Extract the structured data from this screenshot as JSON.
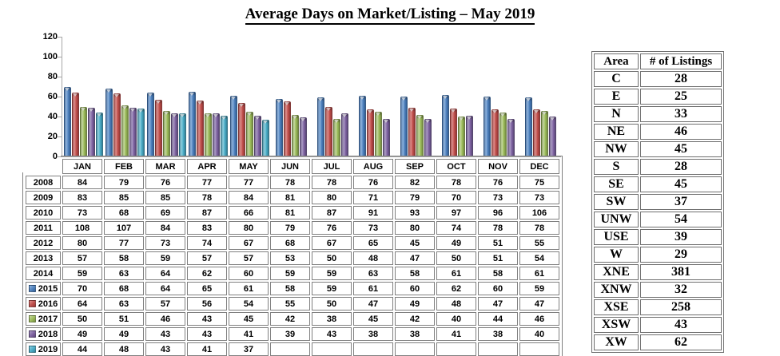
{
  "title": "Average Days on Market/Listing – May 2019",
  "chart_data": {
    "type": "bar",
    "title": "Average Days on Market/Listing – May 2019",
    "xlabel": "",
    "ylabel": "",
    "categories": [
      "JAN",
      "FEB",
      "MAR",
      "APR",
      "MAY",
      "JUN",
      "JUL",
      "AUG",
      "SEP",
      "OCT",
      "NOV",
      "DEC"
    ],
    "ylim": [
      0,
      120
    ],
    "yticks": [
      0,
      20,
      40,
      60,
      80,
      100,
      120
    ],
    "grid": "off",
    "legend_position": "keys-in-data-table-rows",
    "axis_color": "#a6a6a6",
    "series": [
      {
        "name": "2008",
        "plotted": false,
        "values": [
          84,
          79,
          76,
          77,
          77,
          78,
          78,
          76,
          82,
          78,
          76,
          75
        ]
      },
      {
        "name": "2009",
        "plotted": false,
        "values": [
          83,
          85,
          85,
          78,
          84,
          81,
          80,
          71,
          79,
          70,
          73,
          73
        ]
      },
      {
        "name": "2010",
        "plotted": false,
        "values": [
          73,
          68,
          69,
          87,
          66,
          81,
          87,
          91,
          93,
          97,
          96,
          106
        ]
      },
      {
        "name": "2011",
        "plotted": false,
        "values": [
          108,
          107,
          84,
          83,
          80,
          79,
          76,
          73,
          80,
          74,
          78,
          78
        ]
      },
      {
        "name": "2012",
        "plotted": false,
        "values": [
          80,
          77,
          73,
          74,
          67,
          68,
          67,
          65,
          45,
          49,
          51,
          55
        ]
      },
      {
        "name": "2013",
        "plotted": false,
        "values": [
          57,
          58,
          59,
          57,
          57,
          53,
          50,
          48,
          47,
          50,
          51,
          54
        ]
      },
      {
        "name": "2014",
        "plotted": false,
        "values": [
          59,
          63,
          64,
          62,
          60,
          59,
          59,
          63,
          58,
          61,
          58,
          61
        ]
      },
      {
        "name": "2015",
        "plotted": true,
        "colors": {
          "base": "#4f81bd",
          "light": "#8fb4de",
          "dark": "#35629a"
        },
        "values": [
          70,
          68,
          64,
          65,
          61,
          58,
          59,
          61,
          60,
          62,
          60,
          59
        ]
      },
      {
        "name": "2016",
        "plotted": true,
        "colors": {
          "base": "#c0504d",
          "light": "#dd8e8b",
          "dark": "#9a3a38"
        },
        "values": [
          64,
          63,
          57,
          56,
          54,
          55,
          50,
          47,
          49,
          48,
          47,
          47
        ]
      },
      {
        "name": "2017",
        "plotted": true,
        "colors": {
          "base": "#9bbb59",
          "light": "#c6d9a0",
          "dark": "#789044"
        },
        "values": [
          50,
          51,
          46,
          43,
          45,
          42,
          38,
          45,
          42,
          40,
          44,
          46
        ]
      },
      {
        "name": "2018",
        "plotted": true,
        "colors": {
          "base": "#8064a2",
          "light": "#ab9cc4",
          "dark": "#5e4a7d"
        },
        "values": [
          49,
          49,
          43,
          43,
          41,
          39,
          43,
          38,
          38,
          41,
          38,
          40
        ]
      },
      {
        "name": "2019",
        "plotted": true,
        "colors": {
          "base": "#4bacc6",
          "light": "#8fd0e0",
          "dark": "#35839b"
        },
        "values": [
          44,
          48,
          43,
          41,
          37,
          null,
          null,
          null,
          null,
          null,
          null,
          null
        ]
      }
    ]
  },
  "listings_table": {
    "headers": [
      "Area",
      "# of Listings"
    ],
    "rows": [
      [
        "C",
        "28"
      ],
      [
        "E",
        "25"
      ],
      [
        "N",
        "33"
      ],
      [
        "NE",
        "46"
      ],
      [
        "NW",
        "45"
      ],
      [
        "S",
        "28"
      ],
      [
        "SE",
        "45"
      ],
      [
        "SW",
        "37"
      ],
      [
        "UNW",
        "54"
      ],
      [
        "USE",
        "39"
      ],
      [
        "W",
        "29"
      ],
      [
        "XNE",
        "381"
      ],
      [
        "XNW",
        "32"
      ],
      [
        "XSE",
        "258"
      ],
      [
        "XSW",
        "43"
      ],
      [
        "XW",
        "62"
      ]
    ]
  }
}
